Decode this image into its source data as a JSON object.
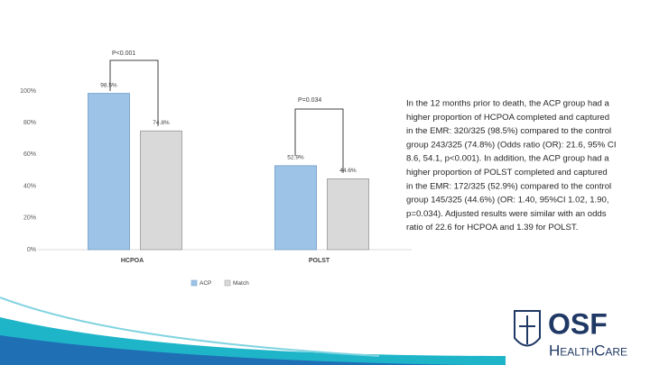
{
  "chart_data": {
    "type": "bar",
    "categories": [
      "HCPOA",
      "POLST"
    ],
    "series": [
      {
        "name": "ACP",
        "color": "#9dc3e6",
        "values": [
          98.5,
          52.9
        ],
        "value_labels": [
          "98.5%",
          "52.9%"
        ]
      },
      {
        "name": "Match",
        "color": "#d9d9d9",
        "values": [
          74.8,
          44.6
        ],
        "value_labels": [
          "74.8%",
          "44.6%"
        ]
      }
    ],
    "ylim": [
      0,
      100
    ],
    "yticks": [
      {
        "value": 0,
        "label": "0%"
      },
      {
        "value": 20,
        "label": "20%"
      },
      {
        "value": 40,
        "label": "40%"
      },
      {
        "value": 60,
        "label": "60%"
      },
      {
        "value": 80,
        "label": "80%"
      },
      {
        "value": 100,
        "label": "100%"
      }
    ],
    "grid": false,
    "annotations": [
      "P<0.001",
      "P=0.034"
    ]
  },
  "text": {
    "paragraph_lines": [
      "In the 12 months prior to death, the ACP group had a",
      "higher proportion of HCPOA completed and captured",
      "in the EMR: 320/325 (98.5%) compared to the control",
      "group 243/325 (74.8%) (Odds ratio (OR): 21.6, 95% CI",
      "8.6, 54.1, p<0.001).  In addition, the ACP group had a",
      "higher proportion of POLST completed and captured",
      "in the EMR: 172/325 (52.9%) compared to the control",
      "group 145/325 (44.6%) (OR: 1.40, 95%CI 1.02, 1.90,",
      "p=0.034).  Adjusted results were similar with an odds",
      "ratio of 22.6 for HCPOA and 1.39 for POLST."
    ]
  },
  "logo": {
    "name": "OSF",
    "subtitle": "HealthCare"
  }
}
